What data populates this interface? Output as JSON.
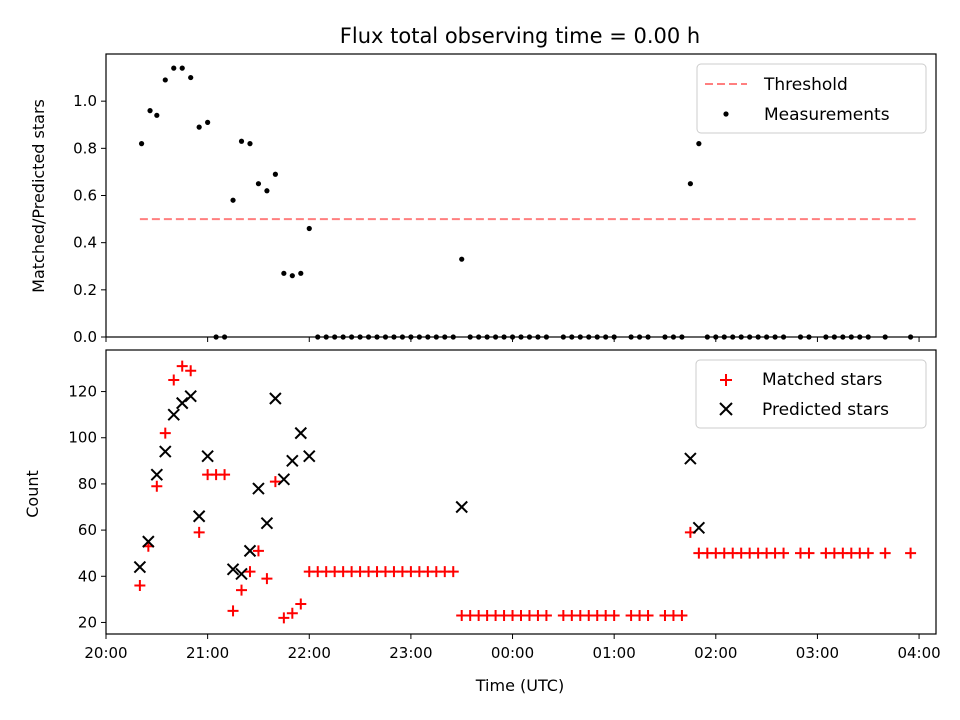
{
  "title": "Flux total observing time = 0.00 h",
  "x_axis": {
    "label": "Time (UTC)",
    "range": [
      "20:00",
      "04:10"
    ],
    "ticks": [
      "20:00",
      "21:00",
      "22:00",
      "23:00",
      "00:00",
      "01:00",
      "02:00",
      "03:00",
      "04:00"
    ]
  },
  "colors": {
    "threshold": "#ff7f7f",
    "measurements": "#000000",
    "matched": "#ff0000",
    "predicted": "#000000"
  },
  "chart_data": [
    {
      "type": "scatter",
      "ylabel": "Matched/Predicted stars",
      "ylim": [
        0,
        1.2
      ],
      "yticks": [
        0.0,
        0.2,
        0.4,
        0.6,
        0.8,
        1.0
      ],
      "legend_position": "top-right",
      "threshold": {
        "name": "Threshold",
        "y": 0.5,
        "x_start": "20:20",
        "x_end": "03:58"
      },
      "series": [
        {
          "name": "Measurements",
          "marker": "dot",
          "points": [
            [
              "20:21",
              0.82
            ],
            [
              "20:26",
              0.96
            ],
            [
              "20:30",
              0.94
            ],
            [
              "20:35",
              1.09
            ],
            [
              "20:40",
              1.14
            ],
            [
              "20:45",
              1.14
            ],
            [
              "20:50",
              1.1
            ],
            [
              "20:55",
              0.89
            ],
            [
              "21:00",
              0.91
            ],
            [
              "21:05",
              0.0
            ],
            [
              "21:10",
              0.0
            ],
            [
              "21:15",
              0.58
            ],
            [
              "21:20",
              0.83
            ],
            [
              "21:25",
              0.82
            ],
            [
              "21:30",
              0.65
            ],
            [
              "21:35",
              0.62
            ],
            [
              "21:40",
              0.69
            ],
            [
              "21:45",
              0.27
            ],
            [
              "21:50",
              0.26
            ],
            [
              "21:55",
              0.27
            ],
            [
              "22:00",
              0.46
            ],
            [
              "22:05",
              0.0
            ],
            [
              "22:10",
              0.0
            ],
            [
              "22:15",
              0.0
            ],
            [
              "22:20",
              0.0
            ],
            [
              "22:25",
              0.0
            ],
            [
              "22:30",
              0.0
            ],
            [
              "22:35",
              0.0
            ],
            [
              "22:40",
              0.0
            ],
            [
              "22:45",
              0.0
            ],
            [
              "22:50",
              0.0
            ],
            [
              "22:55",
              0.0
            ],
            [
              "23:00",
              0.0
            ],
            [
              "23:05",
              0.0
            ],
            [
              "23:10",
              0.0
            ],
            [
              "23:15",
              0.0
            ],
            [
              "23:20",
              0.0
            ],
            [
              "23:25",
              0.0
            ],
            [
              "23:30",
              0.33
            ],
            [
              "23:35",
              0.0
            ],
            [
              "23:40",
              0.0
            ],
            [
              "23:45",
              0.0
            ],
            [
              "23:50",
              0.0
            ],
            [
              "23:55",
              0.0
            ],
            [
              "00:00",
              0.0
            ],
            [
              "00:05",
              0.0
            ],
            [
              "00:10",
              0.0
            ],
            [
              "00:15",
              0.0
            ],
            [
              "00:20",
              0.0
            ],
            [
              "00:30",
              0.0
            ],
            [
              "00:35",
              0.0
            ],
            [
              "00:40",
              0.0
            ],
            [
              "00:45",
              0.0
            ],
            [
              "00:50",
              0.0
            ],
            [
              "00:55",
              0.0
            ],
            [
              "01:00",
              0.0
            ],
            [
              "01:10",
              0.0
            ],
            [
              "01:15",
              0.0
            ],
            [
              "01:20",
              0.0
            ],
            [
              "01:30",
              0.0
            ],
            [
              "01:35",
              0.0
            ],
            [
              "01:40",
              0.0
            ],
            [
              "01:45",
              0.65
            ],
            [
              "01:50",
              0.82
            ],
            [
              "01:55",
              0.0
            ],
            [
              "02:00",
              0.0
            ],
            [
              "02:05",
              0.0
            ],
            [
              "02:10",
              0.0
            ],
            [
              "02:15",
              0.0
            ],
            [
              "02:20",
              0.0
            ],
            [
              "02:25",
              0.0
            ],
            [
              "02:30",
              0.0
            ],
            [
              "02:35",
              0.0
            ],
            [
              "02:40",
              0.0
            ],
            [
              "02:50",
              0.0
            ],
            [
              "02:55",
              0.0
            ],
            [
              "03:05",
              0.0
            ],
            [
              "03:10",
              0.0
            ],
            [
              "03:15",
              0.0
            ],
            [
              "03:20",
              0.0
            ],
            [
              "03:25",
              0.0
            ],
            [
              "03:30",
              0.0
            ],
            [
              "03:40",
              0.0
            ],
            [
              "03:55",
              0.0
            ]
          ]
        }
      ]
    },
    {
      "type": "scatter",
      "ylabel": "Count",
      "ylim": [
        15,
        138
      ],
      "yticks": [
        20,
        40,
        60,
        80,
        100,
        120
      ],
      "legend_position": "top-right",
      "series": [
        {
          "name": "Matched stars",
          "marker": "plus",
          "points": [
            [
              "20:20",
              36
            ],
            [
              "20:25",
              53
            ],
            [
              "20:30",
              79
            ],
            [
              "20:35",
              102
            ],
            [
              "20:40",
              125
            ],
            [
              "20:45",
              131
            ],
            [
              "20:50",
              129
            ],
            [
              "20:55",
              59
            ],
            [
              "21:00",
              84
            ],
            [
              "21:05",
              84
            ],
            [
              "21:10",
              84
            ],
            [
              "21:15",
              25
            ],
            [
              "21:20",
              34
            ],
            [
              "21:25",
              42
            ],
            [
              "21:30",
              51
            ],
            [
              "21:35",
              39
            ],
            [
              "21:40",
              81
            ],
            [
              "21:45",
              22
            ],
            [
              "21:50",
              24
            ],
            [
              "21:55",
              28
            ],
            [
              "22:00",
              42
            ],
            [
              "22:05",
              42
            ],
            [
              "22:10",
              42
            ],
            [
              "22:15",
              42
            ],
            [
              "22:20",
              42
            ],
            [
              "22:25",
              42
            ],
            [
              "22:30",
              42
            ],
            [
              "22:35",
              42
            ],
            [
              "22:40",
              42
            ],
            [
              "22:45",
              42
            ],
            [
              "22:50",
              42
            ],
            [
              "22:55",
              42
            ],
            [
              "23:00",
              42
            ],
            [
              "23:05",
              42
            ],
            [
              "23:10",
              42
            ],
            [
              "23:15",
              42
            ],
            [
              "23:20",
              42
            ],
            [
              "23:25",
              42
            ],
            [
              "23:30",
              23
            ],
            [
              "23:35",
              23
            ],
            [
              "23:40",
              23
            ],
            [
              "23:45",
              23
            ],
            [
              "23:50",
              23
            ],
            [
              "23:55",
              23
            ],
            [
              "00:00",
              23
            ],
            [
              "00:05",
              23
            ],
            [
              "00:10",
              23
            ],
            [
              "00:15",
              23
            ],
            [
              "00:20",
              23
            ],
            [
              "00:30",
              23
            ],
            [
              "00:35",
              23
            ],
            [
              "00:40",
              23
            ],
            [
              "00:45",
              23
            ],
            [
              "00:50",
              23
            ],
            [
              "00:55",
              23
            ],
            [
              "01:00",
              23
            ],
            [
              "01:10",
              23
            ],
            [
              "01:15",
              23
            ],
            [
              "01:20",
              23
            ],
            [
              "01:30",
              23
            ],
            [
              "01:35",
              23
            ],
            [
              "01:40",
              23
            ],
            [
              "01:45",
              59
            ],
            [
              "01:50",
              50
            ],
            [
              "01:55",
              50
            ],
            [
              "02:00",
              50
            ],
            [
              "02:05",
              50
            ],
            [
              "02:10",
              50
            ],
            [
              "02:15",
              50
            ],
            [
              "02:20",
              50
            ],
            [
              "02:25",
              50
            ],
            [
              "02:30",
              50
            ],
            [
              "02:35",
              50
            ],
            [
              "02:40",
              50
            ],
            [
              "02:50",
              50
            ],
            [
              "02:55",
              50
            ],
            [
              "03:05",
              50
            ],
            [
              "03:10",
              50
            ],
            [
              "03:15",
              50
            ],
            [
              "03:20",
              50
            ],
            [
              "03:25",
              50
            ],
            [
              "03:30",
              50
            ],
            [
              "03:40",
              50
            ],
            [
              "03:55",
              50
            ]
          ]
        },
        {
          "name": "Predicted stars",
          "marker": "x",
          "points": [
            [
              "20:20",
              44
            ],
            [
              "20:25",
              55
            ],
            [
              "20:30",
              84
            ],
            [
              "20:35",
              94
            ],
            [
              "20:40",
              110
            ],
            [
              "20:45",
              115
            ],
            [
              "20:50",
              118
            ],
            [
              "20:55",
              66
            ],
            [
              "21:00",
              92
            ],
            [
              "21:15",
              43
            ],
            [
              "21:20",
              41
            ],
            [
              "21:25",
              51
            ],
            [
              "21:30",
              78
            ],
            [
              "21:35",
              63
            ],
            [
              "21:40",
              117
            ],
            [
              "21:45",
              82
            ],
            [
              "21:50",
              90
            ],
            [
              "21:55",
              102
            ],
            [
              "22:00",
              92
            ],
            [
              "23:30",
              70
            ],
            [
              "01:45",
              91
            ],
            [
              "01:50",
              61
            ]
          ]
        }
      ]
    }
  ]
}
